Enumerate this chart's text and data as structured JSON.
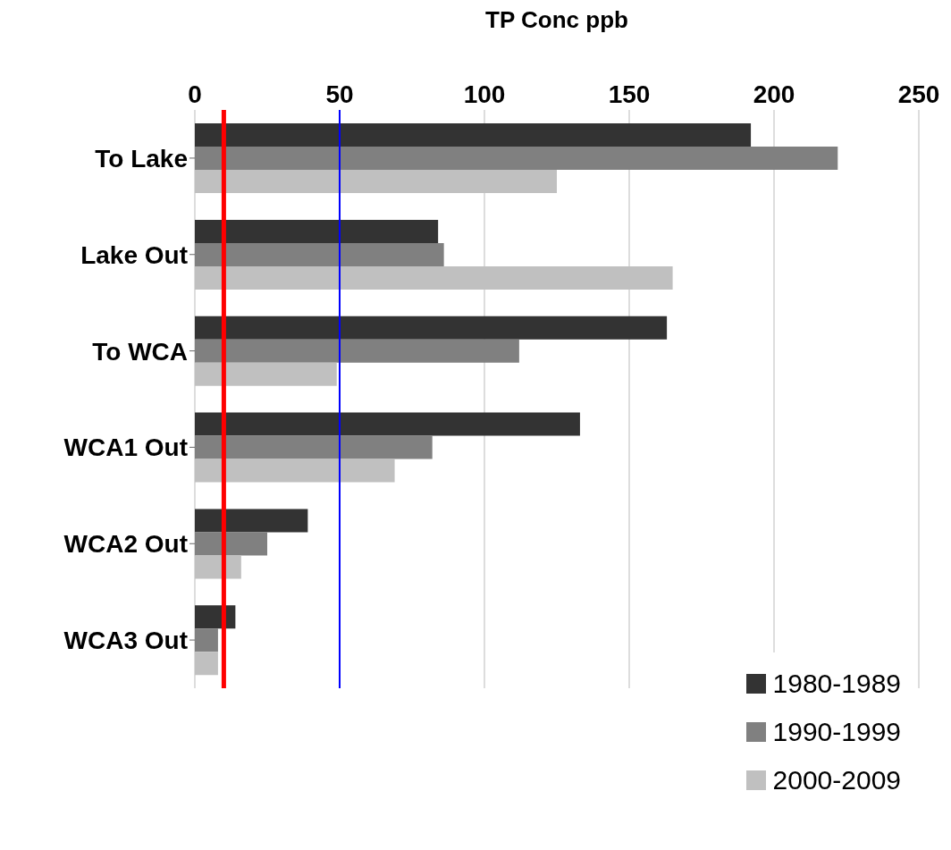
{
  "chart_data": {
    "type": "bar",
    "orientation": "horizontal",
    "xlabel": "TP Conc ppb",
    "categories": [
      "To Lake",
      "Lake Out",
      "To WCA",
      "WCA1 Out",
      "WCA2 Out",
      "WCA3 Out"
    ],
    "series": [
      {
        "name": "1980-1989",
        "color": "#333333",
        "values": [
          192,
          84,
          163,
          133,
          39,
          14
        ]
      },
      {
        "name": "1990-1999",
        "color": "#808080",
        "values": [
          222,
          86,
          112,
          82,
          25,
          8
        ]
      },
      {
        "name": "2000-2009",
        "color": "#c0c0c0",
        "values": [
          125,
          165,
          49,
          69,
          16,
          8
        ]
      }
    ],
    "xlim": [
      0,
      250
    ],
    "xticks": [
      0,
      50,
      100,
      150,
      200,
      250
    ],
    "ref_lines": [
      {
        "axis": "x",
        "value": 10,
        "color": "#ff0000"
      },
      {
        "axis": "x",
        "value": 50,
        "color": "#0000ff"
      }
    ],
    "grid": "x",
    "legend": "bottom right"
  }
}
